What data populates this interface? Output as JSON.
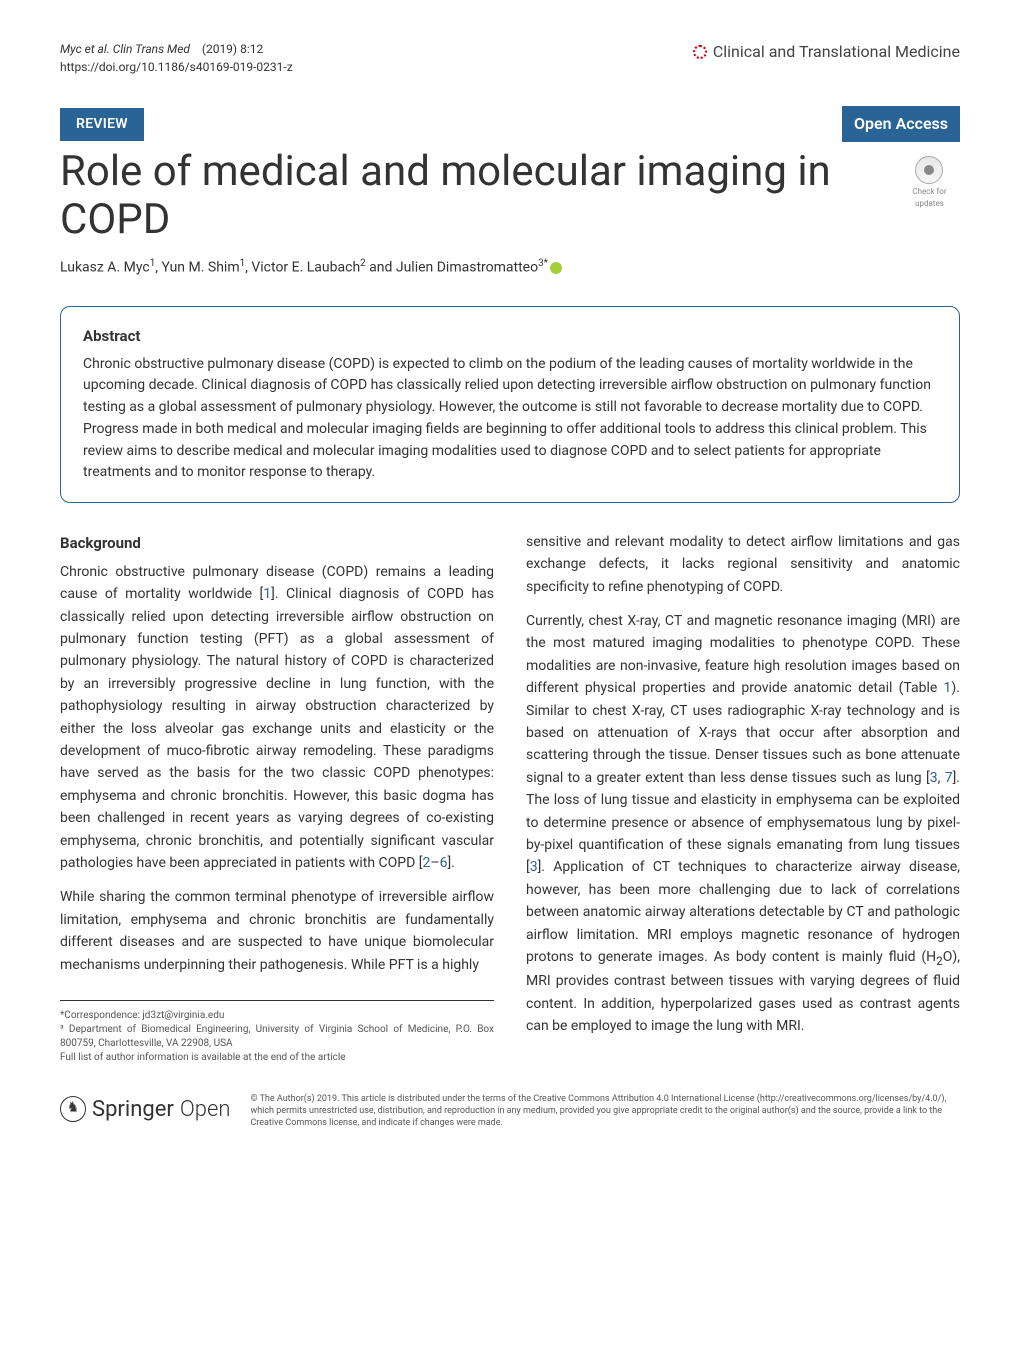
{
  "header": {
    "citation_authors": "Myc et al. Clin Trans Med",
    "citation_year_vol": "(2019) 8:12",
    "doi": "https://doi.org/10.1186/s40169-019-0231-z",
    "journal_name": "Clinical and Translational Medicine"
  },
  "badges": {
    "review": "REVIEW",
    "open_access": "Open Access"
  },
  "article": {
    "title": "Role of medical and molecular imaging in COPD",
    "authors_html": "Lukasz A. Myc<sup>1</sup>, Yun M. Shim<sup>1</sup>, Victor E. Laubach<sup>2</sup> and Julien Dimastromatteo<sup>3*</sup>",
    "check_updates": "Check for updates"
  },
  "abstract": {
    "heading": "Abstract",
    "text": "Chronic obstructive pulmonary disease (COPD) is expected to climb on the podium of the leading causes of mortality worldwide in the upcoming decade. Clinical diagnosis of COPD has classically relied upon detecting irreversible airflow obstruction on pulmonary function testing as a global assessment of pulmonary physiology. However, the outcome is still not favorable to decrease mortality due to COPD. Progress made in both medical and molecular imaging fields are beginning to offer additional tools to address this clinical problem. This review aims to describe medical and molecular imaging modalities used to diagnose COPD and to select patients for appropriate treatments and to monitor response to therapy."
  },
  "body": {
    "background_heading": "Background",
    "p1": "Chronic obstructive pulmonary disease (COPD) remains a leading cause of mortality worldwide [1]. Clinical diagnosis of COPD has classically relied upon detecting irreversible airflow obstruction on pulmonary function testing (PFT) as a global assessment of pulmonary physiology. The natural history of COPD is characterized by an irreversibly progressive decline in lung function, with the pathophysiology resulting in airway obstruction characterized by either the loss alveolar gas exchange units and elasticity or the development of muco-fibrotic airway remodeling. These paradigms have served as the basis for the two classic COPD phenotypes: emphysema and chronic bronchitis. However, this basic dogma has been challenged in recent years as varying degrees of co-existing emphysema, chronic bronchitis, and potentially significant vascular pathologies have been appreciated in patients with COPD [2–6].",
    "p2": "While sharing the common terminal phenotype of irreversible airflow limitation, emphysema and chronic bronchitis are fundamentally different diseases and are suspected to have unique biomolecular mechanisms underpinning their pathogenesis. While PFT is a highly",
    "p3": "sensitive and relevant modality to detect airflow limitations and gas exchange defects, it lacks regional sensitivity and anatomic specificity to refine phenotyping of COPD.",
    "p4": "Currently, chest X-ray, CT and magnetic resonance imaging (MRI) are the most matured imaging modalities to phenotype COPD. These modalities are non-invasive, feature high resolution images based on different physical properties and provide anatomic detail (Table 1). Similar to chest X-ray, CT uses radiographic X-ray technology and is based on attenuation of X-rays that occur after absorption and scattering through the tissue. Denser tissues such as bone attenuate signal to a greater extent than less dense tissues such as lung [3, 7]. The loss of lung tissue and elasticity in emphysema can be exploited to determine presence or absence of emphysematous lung by pixel-by-pixel quantification of these signals emanating from lung tissues [3]. Application of CT techniques to characterize airway disease, however, has been more challenging due to lack of correlations between anatomic airway alterations detectable by CT and pathologic airflow limitation. MRI employs magnetic resonance of hydrogen protons to generate images. As body content is mainly fluid (H₂O), MRI provides contrast between tissues with varying degrees of fluid content. In addition, hyperpolarized gases used as contrast agents can be employed to image the lung with MRI."
  },
  "footnotes": {
    "correspondence": "*Correspondence:  jd3zt@virginia.edu",
    "affiliation": "³ Department of Biomedical Engineering, University of Virginia School of Medicine, P.O. Box 800759, Charlottesville, VA 22908, USA",
    "full_list": "Full list of author information is available at the end of the article"
  },
  "footer": {
    "springer": "Springer",
    "open": "Open",
    "license": "© The Author(s) 2019. This article is distributed under the terms of the Creative Commons Attribution 4.0 International License (http://creativecommons.org/licenses/by/4.0/), which permits unrestricted use, distribution, and reproduction in any medium, provided you give appropriate credit to the original author(s) and the source, provide a link to the Creative Commons license, and indicate if changes were made."
  },
  "colors": {
    "primary": "#2a6496",
    "text": "#333333",
    "link": "#2a6496",
    "orcid": "#a6ce39",
    "red_dot": "#cc0000"
  }
}
